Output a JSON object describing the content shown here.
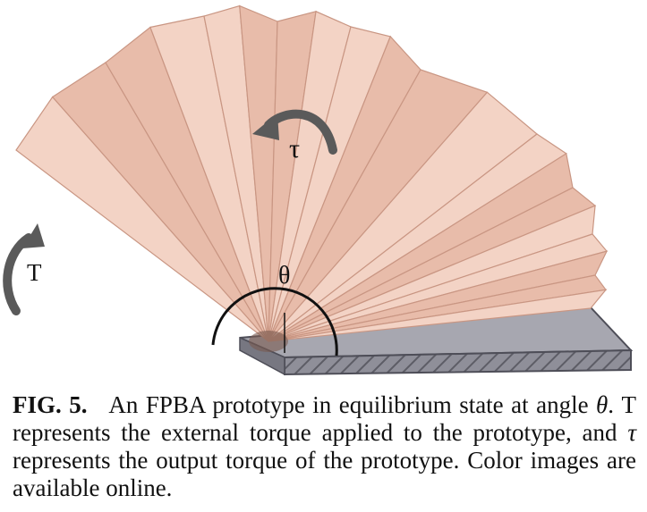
{
  "figure": {
    "labels": {
      "external_torque": "T",
      "output_torque": "τ",
      "angle": "θ"
    },
    "colors": {
      "paper_fold_light": "#f3d3c5",
      "paper_fold_mid": "#e8bcaa",
      "paper_fold_shadow": "#c99683",
      "base_plate": "#8c8c96",
      "arrow": "#5a5a5a"
    }
  },
  "caption": {
    "label": "FIG. 5.",
    "text_before_theta": "An FPBA prototype in equilibrium state at angle",
    "theta": "θ",
    "text_after_theta": ". T represents the external torque applied to the prototype, and",
    "tau": "τ",
    "text_after_tau": "represents the output torque of the prototype. Color images are available online."
  }
}
